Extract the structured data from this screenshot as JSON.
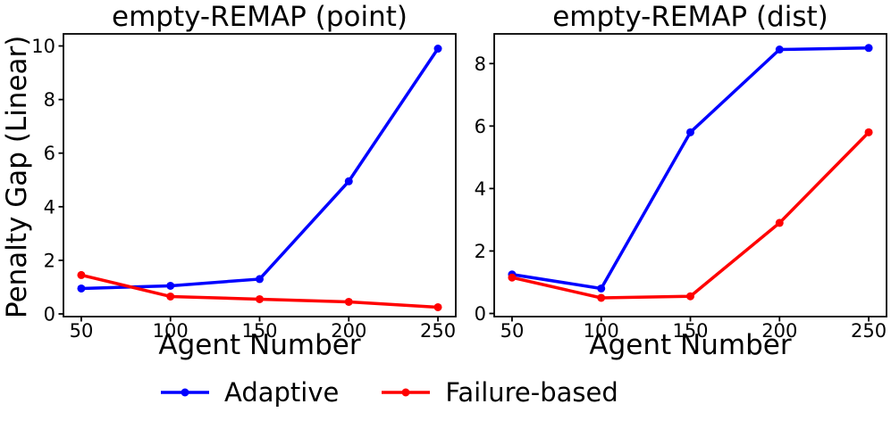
{
  "figure": {
    "background": "#ffffff",
    "text_color": "#000000",
    "legend": {
      "position": "bottom-center",
      "items": [
        {
          "label": "Adaptive",
          "color": "#0000ff",
          "marker": "circle"
        },
        {
          "label": "Failure-based",
          "color": "#ff0000",
          "marker": "circle"
        }
      ]
    }
  },
  "chart_data": [
    {
      "type": "line",
      "title": "empty-REMAP (point)",
      "xlabel": "Agent Number",
      "ylabel": "Penalty Gap (Linear)",
      "x": [
        50,
        100,
        150,
        200,
        250
      ],
      "xticks": [
        50,
        100,
        150,
        200,
        250
      ],
      "yticks": [
        0,
        2,
        4,
        6,
        8,
        10
      ],
      "xlim": [
        40,
        260
      ],
      "ylim": [
        -0.1,
        10.45
      ],
      "grid": false,
      "frame": true,
      "series": [
        {
          "name": "Adaptive",
          "color": "#0000ff",
          "values": [
            0.95,
            1.05,
            1.3,
            4.95,
            9.9
          ]
        },
        {
          "name": "Failure-based",
          "color": "#ff0000",
          "values": [
            1.45,
            0.65,
            0.55,
            0.45,
            0.25
          ]
        }
      ]
    },
    {
      "type": "line",
      "title": "empty-REMAP (dist)",
      "xlabel": "Agent Number",
      "ylabel": "",
      "x": [
        50,
        100,
        150,
        200,
        250
      ],
      "xticks": [
        50,
        100,
        150,
        200,
        250
      ],
      "yticks": [
        0,
        2,
        4,
        6,
        8
      ],
      "xlim": [
        40,
        260
      ],
      "ylim": [
        -0.1,
        8.95
      ],
      "grid": false,
      "frame": true,
      "series": [
        {
          "name": "Adaptive",
          "color": "#0000ff",
          "values": [
            1.25,
            0.8,
            5.8,
            8.45,
            8.5
          ]
        },
        {
          "name": "Failure-based",
          "color": "#ff0000",
          "values": [
            1.15,
            0.5,
            0.55,
            2.9,
            5.8
          ]
        }
      ]
    }
  ]
}
